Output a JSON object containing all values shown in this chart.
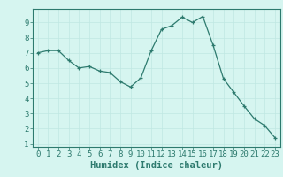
{
  "x": [
    0,
    1,
    2,
    3,
    4,
    5,
    6,
    7,
    8,
    9,
    10,
    11,
    12,
    13,
    14,
    15,
    16,
    17,
    18,
    19,
    20,
    21,
    22,
    23
  ],
  "y": [
    7.0,
    7.15,
    7.15,
    6.5,
    6.0,
    6.1,
    5.8,
    5.7,
    5.1,
    4.75,
    5.35,
    7.15,
    8.55,
    8.8,
    9.35,
    9.0,
    9.4,
    7.5,
    5.3,
    4.4,
    3.5,
    2.65,
    2.2,
    1.4
  ],
  "xlabel": "Humidex (Indice chaleur)",
  "xlim": [
    -0.5,
    23.5
  ],
  "ylim": [
    0.8,
    9.9
  ],
  "yticks": [
    1,
    2,
    3,
    4,
    5,
    6,
    7,
    8,
    9
  ],
  "xticks": [
    0,
    1,
    2,
    3,
    4,
    5,
    6,
    7,
    8,
    9,
    10,
    11,
    12,
    13,
    14,
    15,
    16,
    17,
    18,
    19,
    20,
    21,
    22,
    23
  ],
  "line_color": "#2d7a6e",
  "marker": "+",
  "bg_color": "#d6f5f0",
  "grid_color": "#c0e8e2",
  "label_color": "#2d7a6e",
  "xlabel_fontsize": 7.5,
  "tick_fontsize": 6.5
}
